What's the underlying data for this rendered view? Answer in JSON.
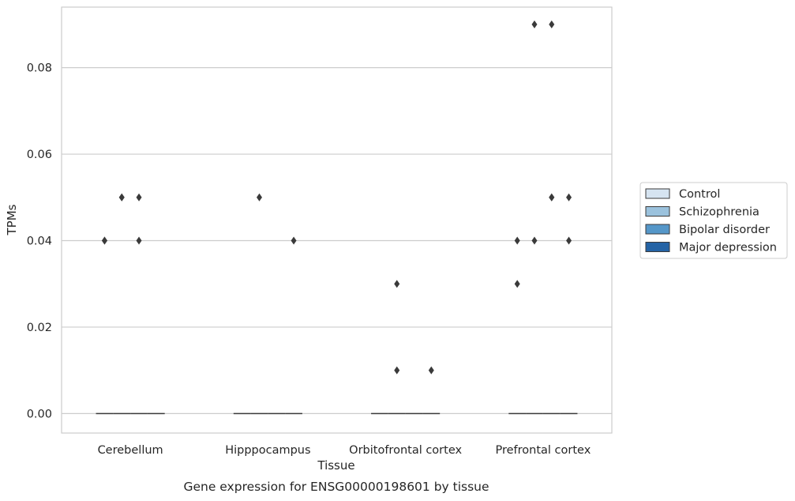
{
  "chart_data": {
    "type": "boxplot",
    "caption": "Gene expression for ENSG00000198601 by tissue",
    "xlabel": "Tissue",
    "ylabel": "TPMs",
    "ylim": [
      -0.0045,
      0.094
    ],
    "yticks": [
      0.0,
      0.02,
      0.04,
      0.06,
      0.08
    ],
    "ytick_labels": [
      "0.00",
      "0.02",
      "0.04",
      "0.06",
      "0.08"
    ],
    "grid": true,
    "legend_position": "right",
    "categories": [
      "Cerebellum",
      "Hipppocampus",
      "Orbitofrontal cortex",
      "Prefrontal cortex"
    ],
    "series": [
      {
        "name": "Control",
        "color": "#d6e4f1",
        "median": [
          0,
          0,
          0,
          0
        ],
        "outliers": [
          [
            0.04,
            0.04
          ],
          [],
          [],
          [
            0.03,
            0.04
          ]
        ]
      },
      {
        "name": "Schizophrenia",
        "color": "#9bc2dd",
        "median": [
          0,
          0,
          0,
          0
        ],
        "outliers": [
          [
            0.05,
            0.05
          ],
          [
            0.05
          ],
          [
            0.03,
            0.01
          ],
          [
            0.09,
            0.04
          ]
        ]
      },
      {
        "name": "Bipolar disorder",
        "color": "#5597c9",
        "median": [
          0,
          0,
          0,
          0
        ],
        "outliers": [
          [
            0.05,
            0.04
          ],
          [],
          [],
          [
            0.09,
            0.05,
            0.05
          ]
        ]
      },
      {
        "name": "Major depression",
        "color": "#2463a5",
        "median": [
          0,
          0,
          0,
          0
        ],
        "outliers": [
          [],
          [
            0.04
          ],
          [
            0.01
          ],
          [
            0.05,
            0.04
          ]
        ]
      }
    ]
  }
}
